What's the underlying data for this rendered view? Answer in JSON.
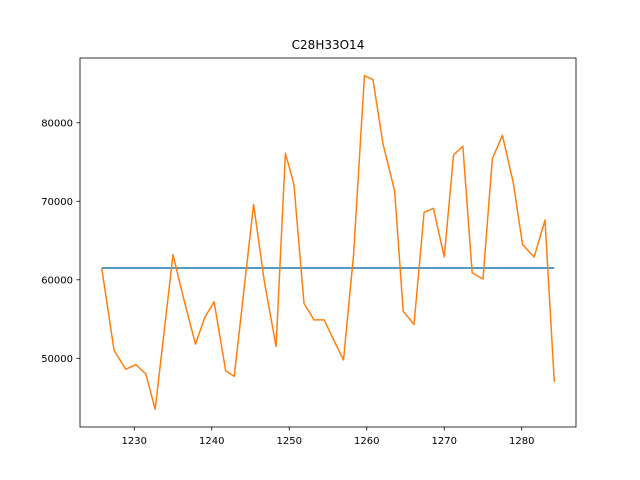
{
  "chart_data": {
    "type": "line",
    "title": "C28H33O14",
    "xlabel": "",
    "ylabel": "",
    "xlim": [
      1223,
      1287
    ],
    "ylim": [
      41250,
      88250
    ],
    "xticks": [
      1230,
      1240,
      1250,
      1260,
      1270,
      1280
    ],
    "yticks": [
      50000,
      60000,
      70000,
      80000
    ],
    "grid": false,
    "series": [
      {
        "color": "#1f77b4",
        "x": [
          1225.8,
          1284.2
        ],
        "y": [
          61500,
          61500
        ]
      },
      {
        "color": "#ff7f0e",
        "x": [
          1225.8,
          1227.4,
          1228.9,
          1230.2,
          1231.5,
          1232.7,
          1235.0,
          1236.4,
          1237.9,
          1239.1,
          1240.3,
          1241.8,
          1242.9,
          1245.4,
          1246.8,
          1248.3,
          1249.5,
          1250.6,
          1251.9,
          1253.2,
          1254.5,
          1255.7,
          1257.0,
          1258.3,
          1259.7,
          1260.8,
          1262.1,
          1263.6,
          1264.7,
          1266.1,
          1267.4,
          1268.6,
          1270.0,
          1271.2,
          1272.4,
          1273.6,
          1275.0,
          1276.2,
          1277.5,
          1278.9,
          1280.1,
          1281.6,
          1283.0,
          1284.2
        ],
        "y": [
          61500,
          51000,
          48600,
          49200,
          48000,
          43500,
          63200,
          57500,
          51800,
          55200,
          57200,
          48400,
          47700,
          69600,
          59700,
          51500,
          76100,
          72200,
          57000,
          54900,
          54900,
          52400,
          49800,
          63200,
          86000,
          85500,
          77300,
          71300,
          56000,
          54300,
          68600,
          69100,
          62900,
          75900,
          77000,
          60900,
          60100,
          75400,
          78400,
          72400,
          64500,
          62900,
          67600,
          47000
        ]
      }
    ]
  }
}
